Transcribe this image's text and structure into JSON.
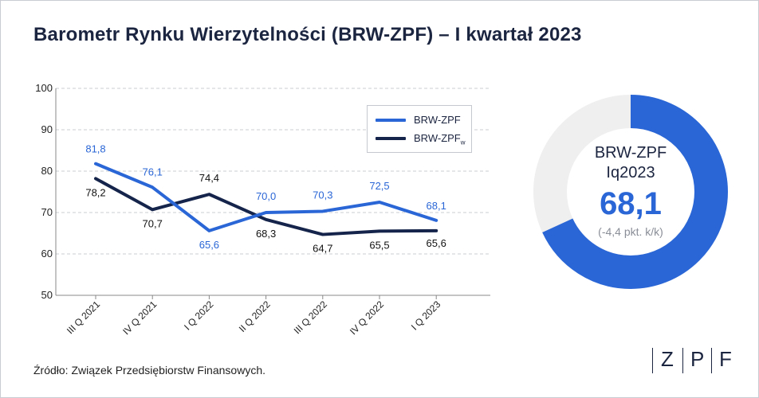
{
  "page": {
    "title": "Barometr Rynku Wierzytelności (BRW-ZPF) – I kwartał 2023"
  },
  "chart_data": {
    "type": "line",
    "title": "Barometr Rynku Wierzytelności (BRW-ZPF) – I kwartał 2023",
    "categories": [
      "III Q 2021",
      "IV Q 2021",
      "I Q 2022",
      "II Q 2022",
      "III Q 2022",
      "IV Q 2022",
      "I Q 2023"
    ],
    "series": [
      {
        "name": "BRW-ZPF",
        "color": "#2a66d6",
        "values": [
          81.8,
          76.1,
          65.6,
          70.0,
          70.3,
          72.5,
          68.1
        ],
        "labels": [
          "81,8",
          "76,1",
          "65,6",
          "70,0",
          "70,3",
          "72,5",
          "68,1"
        ]
      },
      {
        "name": "BRW-ZPF",
        "subscript": "w",
        "color": "#15244a",
        "values": [
          78.2,
          70.7,
          74.4,
          68.3,
          64.7,
          65.5,
          65.6
        ],
        "labels": [
          "78,2",
          "70,7",
          "74,4",
          "68,3",
          "64,7",
          "65,5",
          "65,6"
        ]
      }
    ],
    "ylim": [
      50,
      100
    ],
    "yticks": [
      50,
      60,
      70,
      80,
      90,
      100
    ],
    "ytick_labels": [
      "50",
      "60",
      "70",
      "80",
      "90",
      "100"
    ],
    "grid": true,
    "legend": "top-right"
  },
  "donut": {
    "name": "BRW-ZPF",
    "period": "Iq2023",
    "value": 68.1,
    "value_label": "68,1",
    "change_label": "(-4,4 pkt. k/k)",
    "max": 100,
    "fill_color": "#2a66d6",
    "track_color": "#efefef"
  },
  "footer": {
    "source": "Źródło: Związek Przedsiębiorstw Finansowych."
  },
  "logo": {
    "letters": [
      "Z",
      "P",
      "F"
    ]
  }
}
